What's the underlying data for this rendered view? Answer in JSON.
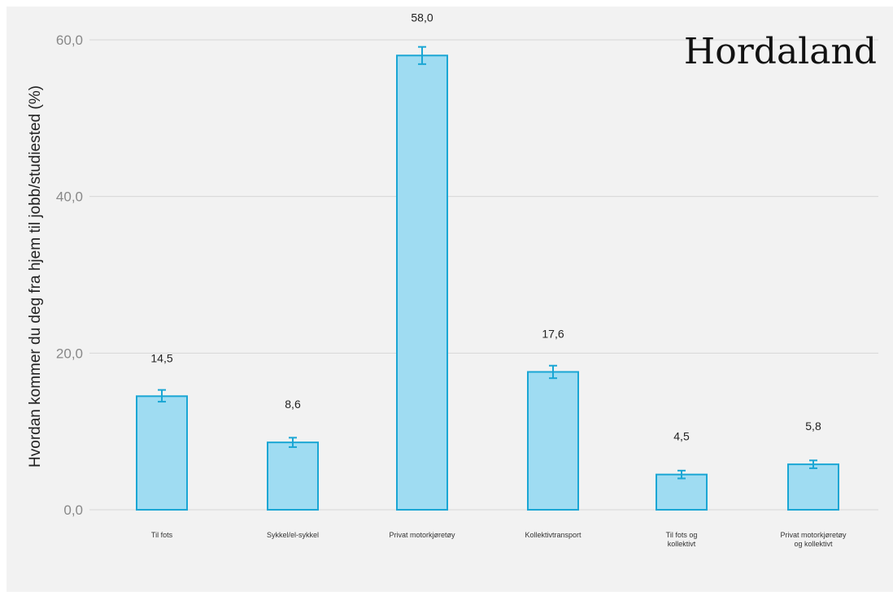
{
  "chart_data": {
    "type": "bar",
    "title": "Hordaland",
    "ylabel": "Hvordan kommer du deg fra hjem til jobb/studiested (%)",
    "xlabel": "",
    "categories": [
      [
        "Til fots"
      ],
      [
        "Sykkel/el-sykkel"
      ],
      [
        "Privat motorkjøretøy"
      ],
      [
        "Kollektivtransport"
      ],
      [
        "Til fots og",
        "kollektivt"
      ],
      [
        "Privat motorkjøretøy",
        "og kollektivt"
      ]
    ],
    "values": [
      14.5,
      8.6,
      58.0,
      17.6,
      4.5,
      5.8
    ],
    "value_labels": [
      "14,5",
      "8,6",
      "58,0",
      "17,6",
      "4,5",
      "5,8"
    ],
    "error_low": [
      13.8,
      8.0,
      56.9,
      16.8,
      4.0,
      5.3
    ],
    "error_high": [
      15.3,
      9.2,
      59.1,
      18.4,
      5.0,
      6.3
    ],
    "ylim": [
      0,
      60
    ],
    "yticks": [
      0,
      20,
      40,
      60
    ],
    "ytick_labels": [
      "0,0",
      "20,0",
      "40,0",
      "60,0"
    ],
    "grid": true,
    "colors": {
      "bar_fill": "#9fdcf2",
      "bar_stroke": "#1aa6d4",
      "grid": "#d6d6d6",
      "error_bar": "#1aa6d4"
    }
  }
}
